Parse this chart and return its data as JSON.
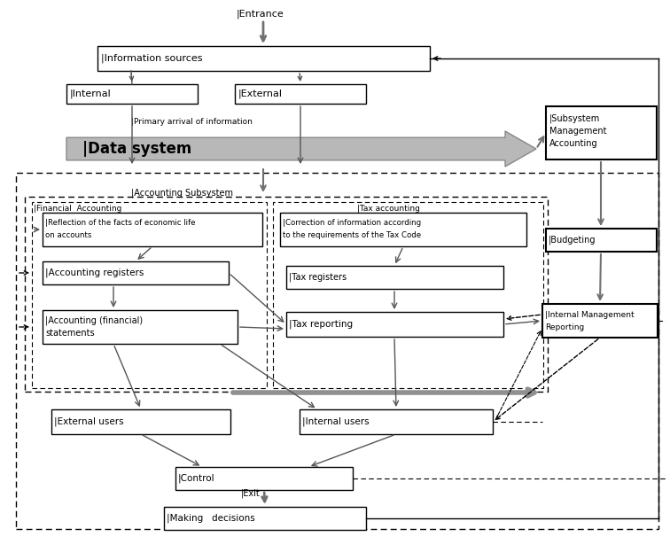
{
  "fig_width": 7.56,
  "fig_height": 6.32,
  "bg_color": "#ffffff",
  "gray_arrow_fill": "#a0a0a0",
  "gray_arrow_edge": "#808080",
  "gray_box_fill": "#d0d0d0",
  "black": "#000000",
  "dark_gray": "#505050",
  "font_size_small": 6.0,
  "font_size_med": 7.0,
  "font_size_large": 9.5,
  "entrance_text": "|Entrance",
  "info_src_text": "|Information sources",
  "internal_text": "|Internal",
  "external_text": "|External",
  "primary_text": "|Primary arrival of information",
  "data_sys_text": "|Data system",
  "acct_sub_text": "|Accounting Subsystem",
  "fin_acct_text": "|Financial  Accounting",
  "tax_acct_text": "|Tax accounting",
  "reflect_line1": "|Reflection of the facts of economic life",
  "reflect_line2": "on accounts",
  "acct_reg_text": "|Accounting registers",
  "acct_fin_line1": "|Accounting (financial)",
  "acct_fin_line2": "statements",
  "correct_line1": "|Correction of information according",
  "correct_line2": "to the requirements of the Tax Code",
  "tax_reg_text": "|Tax registers",
  "tax_rep_text": "|Tax reporting",
  "subsys_line1": "|Subsystem",
  "subsys_line2": "Management",
  "subsys_line3": "Accounting",
  "budget_text": "|Budgeting",
  "imr_line1": "|Internal Management",
  "imr_line2": "Reporting",
  "ext_users_text": "|External users",
  "int_users_text": "|Internal users",
  "control_text": "|Control",
  "exit_text": "|Exit",
  "making_text": "|Making   decisions"
}
